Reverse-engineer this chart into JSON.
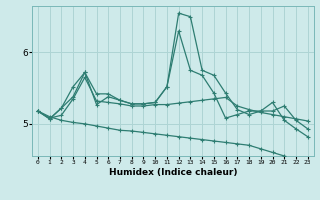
{
  "title": "",
  "xlabel": "Humidex (Indice chaleur)",
  "ylabel": "",
  "bg_color": "#ceeaea",
  "line_color": "#2e7d72",
  "grid_color": "#aed4d4",
  "ylim": [
    4.55,
    6.65
  ],
  "yticks": [
    5,
    6
  ],
  "n_points": 24,
  "series": [
    [
      5.18,
      5.07,
      5.22,
      5.38,
      5.72,
      5.27,
      5.38,
      5.33,
      5.28,
      5.28,
      5.3,
      5.52,
      6.3,
      5.75,
      5.68,
      5.43,
      5.08,
      5.13,
      5.18,
      5.18,
      5.3,
      5.05,
      4.93,
      4.82
    ],
    [
      5.18,
      5.07,
      5.22,
      5.52,
      5.72,
      5.42,
      5.42,
      5.33,
      5.28,
      5.28,
      5.3,
      5.52,
      6.55,
      6.5,
      5.75,
      5.68,
      5.43,
      5.2,
      5.13,
      5.18,
      5.18,
      5.25,
      5.05,
      4.93
    ],
    [
      5.18,
      5.08,
      5.12,
      5.35,
      5.65,
      5.32,
      5.3,
      5.28,
      5.25,
      5.25,
      5.27,
      5.27,
      5.29,
      5.31,
      5.33,
      5.35,
      5.37,
      5.25,
      5.2,
      5.16,
      5.13,
      5.1,
      5.07,
      5.04
    ],
    [
      5.18,
      5.1,
      5.05,
      5.02,
      5.0,
      4.97,
      4.94,
      4.91,
      4.9,
      4.88,
      4.86,
      4.84,
      4.82,
      4.8,
      4.78,
      4.76,
      4.74,
      4.72,
      4.7,
      4.65,
      4.6,
      4.55,
      4.5,
      4.45
    ]
  ]
}
